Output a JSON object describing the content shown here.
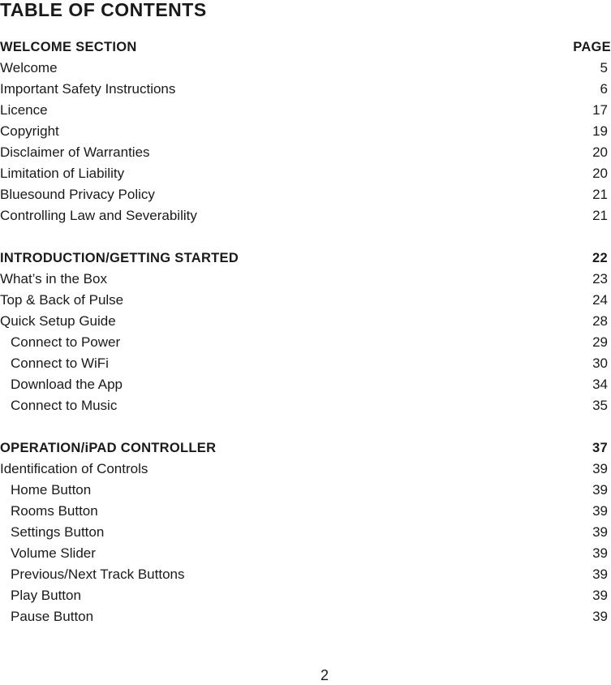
{
  "title": "TABLE OF CONTENTS",
  "sections": [
    {
      "heading": "WELCOME SECTION",
      "page": "PAGE",
      "items": [
        {
          "label": "Welcome",
          "page": "5",
          "indent": false
        },
        {
          "label": "Important Safety Instructions",
          "page": "6",
          "indent": false
        },
        {
          "label": "Licence",
          "page": "17",
          "indent": false
        },
        {
          "label": "Copyright",
          "page": "19",
          "indent": false
        },
        {
          "label": "Disclaimer of Warranties",
          "page": "20",
          "indent": false
        },
        {
          "label": "Limitation of Liability",
          "page": "20",
          "indent": false
        },
        {
          "label": "Bluesound Privacy Policy",
          "page": "21",
          "indent": false
        },
        {
          "label": "Controlling Law and Severability",
          "page": "21",
          "indent": false
        }
      ]
    },
    {
      "heading": "INTRODUCTION/GETTING STARTED",
      "page": "22",
      "items": [
        {
          "label": "What’s in the Box",
          "page": "23",
          "indent": false
        },
        {
          "label": "Top & Back of Pulse",
          "page": "24",
          "indent": false
        },
        {
          "label": "Quick Setup Guide",
          "page": "28",
          "indent": false
        },
        {
          "label": "Connect to Power",
          "page": "29",
          "indent": true
        },
        {
          "label": "Connect to WiFi",
          "page": "30",
          "indent": true
        },
        {
          "label": "Download the App",
          "page": "34",
          "indent": true
        },
        {
          "label": "Connect to Music",
          "page": "35",
          "indent": true
        }
      ]
    },
    {
      "heading": "OPERATION/iPAD CONTROLLER",
      "page": "37",
      "items": [
        {
          "label": "Identification of Controls",
          "page": "39",
          "indent": false
        },
        {
          "label": "Home Button",
          "page": "39",
          "indent": true
        },
        {
          "label": "Rooms Button",
          "page": "39",
          "indent": true
        },
        {
          "label": "Settings Button",
          "page": "39",
          "indent": true
        },
        {
          "label": "Volume Slider",
          "page": "39",
          "indent": true
        },
        {
          "label": "Previous/Next Track Buttons",
          "page": "39",
          "indent": true
        },
        {
          "label": "Play Button",
          "page": "39",
          "indent": true
        },
        {
          "label": "Pause Button",
          "page": "39",
          "indent": true
        }
      ]
    }
  ],
  "page_number": "2"
}
